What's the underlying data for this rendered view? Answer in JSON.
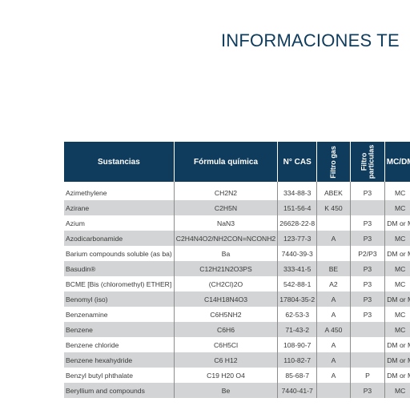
{
  "title": "INFORMACIONES TE",
  "table": {
    "headers": {
      "sustancias": "Sustancias",
      "formula": "Fórmula química",
      "cas": "N° CAS",
      "filtro_gas": "Filtro gas",
      "filtro_particulas_1": "Filtro",
      "filtro_particulas_2": "partículas",
      "mc": "MC/DM"
    },
    "rows": [
      {
        "name": "Azimethylene",
        "formula": "CH2N2",
        "cas": "334-88-3",
        "gas": "ABEK",
        "particulas": "P3",
        "mc": "MC"
      },
      {
        "name": "Azirane",
        "formula": "C2H5N",
        "cas": "151-56-4",
        "gas": "K 450",
        "particulas": "",
        "mc": "MC"
      },
      {
        "name": "Azium",
        "formula": "NaN3",
        "cas": "26628-22-8",
        "gas": "",
        "particulas": "P3",
        "mc": "DM or M"
      },
      {
        "name": "Azodicarbonamide",
        "formula": "C2H4N4O2/NH2CON=NCONH2",
        "cas": "123-77-3",
        "gas": "A",
        "particulas": "P3",
        "mc": "MC"
      },
      {
        "name": "Barium compounds soluble (as ba)",
        "formula": "Ba",
        "cas": "7440-39-3",
        "gas": "",
        "particulas": "P2/P3",
        "mc": "DM or M"
      },
      {
        "name": "Basudin®",
        "formula": "C12H21N2O3PS",
        "cas": "333-41-5",
        "gas": "BE",
        "particulas": "P3",
        "mc": "MC"
      },
      {
        "name": "BCME [Bis (chloromethyl)  ETHER]",
        "formula": "(CH2Cl)2O",
        "cas": "542-88-1",
        "gas": "A2",
        "particulas": "P3",
        "mc": "MC"
      },
      {
        "name": "Benomyl (iso)",
        "formula": "C14H18N4O3",
        "cas": "17804-35-2",
        "gas": "A",
        "particulas": "P3",
        "mc": "DM or M"
      },
      {
        "name": "Benzenamine",
        "formula": "C6H5NH2",
        "cas": "62-53-3",
        "gas": "A",
        "particulas": "P3",
        "mc": "MC"
      },
      {
        "name": "Benzene",
        "formula": "C6H6",
        "cas": "71-43-2",
        "gas": "A 450",
        "particulas": "",
        "mc": "MC"
      },
      {
        "name": "Benzene chloride",
        "formula": "C6H5Cl",
        "cas": "108-90-7",
        "gas": "A",
        "particulas": "",
        "mc": "DM or M"
      },
      {
        "name": "Benzene hexahydride",
        "formula": "C6 H12",
        "cas": "110-82-7",
        "gas": "A",
        "particulas": "",
        "mc": "DM or M"
      },
      {
        "name": "Benzyl butyl phthalate",
        "formula": "C19 H20 O4",
        "cas": "85-68-7",
        "gas": "A",
        "particulas": "P",
        "mc": "DM or M"
      },
      {
        "name": "Beryllium and compounds",
        "formula": "Be",
        "cas": "7440-41-7",
        "gas": "",
        "particulas": "P3",
        "mc": "MC"
      }
    ]
  },
  "colors": {
    "header_bg": "#0f3c5c",
    "row_shade": "#d3d4d5",
    "title": "#0f3c5c"
  }
}
